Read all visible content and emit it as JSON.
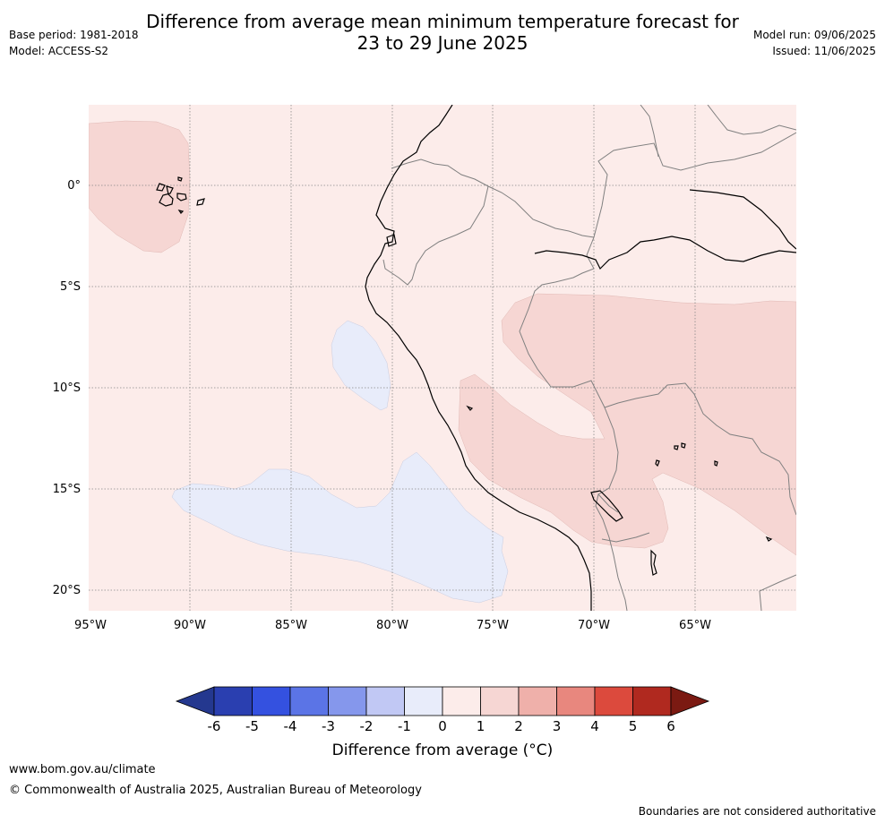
{
  "header": {
    "title_line1": "Difference from average mean minimum temperature forecast for",
    "title_line2": "23 to 29 June 2025",
    "base_period": "Base period: 1981-2018",
    "model": "Model: ACCESS-S2",
    "model_run": "Model run: 09/06/2025",
    "issued": "Issued: 11/06/2025"
  },
  "map": {
    "lon_labels": [
      "95°W",
      "90°W",
      "85°W",
      "80°W",
      "75°W",
      "70°W",
      "65°W"
    ],
    "lat_labels": [
      "0°",
      "5°S",
      "10°S",
      "15°S",
      "20°S"
    ],
    "colors": {
      "background_anomaly_0_1": "#fcecea",
      "anomaly_1_2": "#f6d6d3",
      "anomaly_-1_0": "#e8ecfa",
      "coast": "#000000",
      "border": "#808080",
      "grid": "#888888"
    }
  },
  "colorbar": {
    "ticks": [
      "-6",
      "-5",
      "-4",
      "-3",
      "-2",
      "-1",
      "0",
      "1",
      "2",
      "3",
      "4",
      "5",
      "6"
    ],
    "colors": [
      "#24388f",
      "#2a3fb0",
      "#3451e0",
      "#5b74e6",
      "#8597ec",
      "#c1c8f4",
      "#e8ecfa",
      "#fcecea",
      "#f6d6d3",
      "#efb0aa",
      "#e8877e",
      "#dc4a3d",
      "#b0291f",
      "#7b1a12"
    ],
    "label": "Difference from average (°C)"
  },
  "footer": {
    "url": "www.bom.gov.au/climate",
    "copyright": "© Commonwealth of Australia 2025, Australian Bureau of Meteorology",
    "disclaimer": "Boundaries are not considered authoritative"
  }
}
